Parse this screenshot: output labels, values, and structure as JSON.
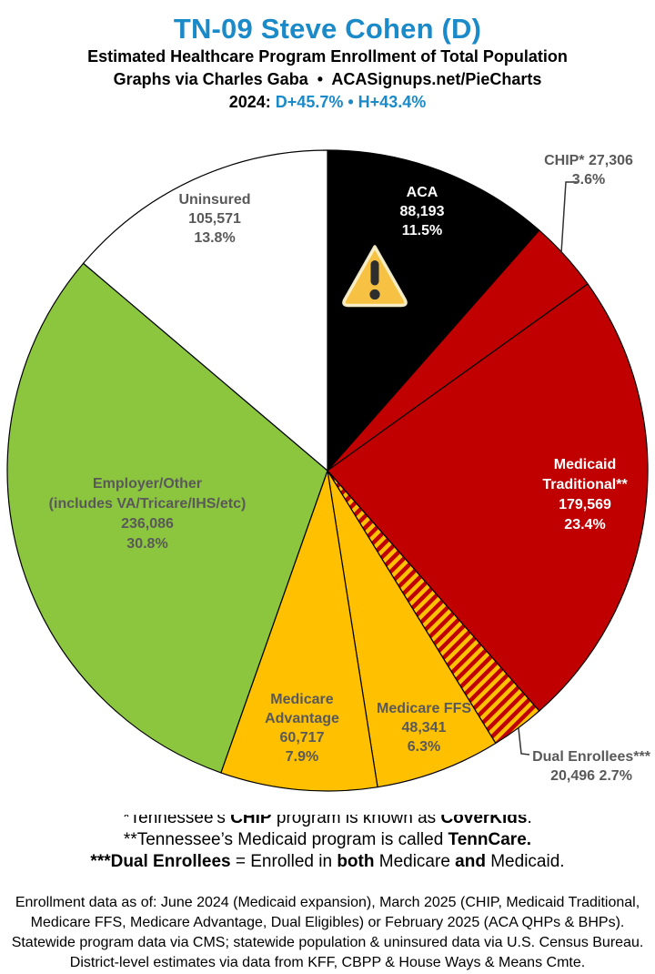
{
  "header": {
    "title": "TN-09 Steve Cohen (D)",
    "subtitle": "Estimated Healthcare Program Enrollment of Total Population",
    "credit": "Graphs via Charles Gaba  •  ACASignups.net/PieCharts",
    "year_segments": [
      {
        "text": "2024: ",
        "color": "#000000"
      },
      {
        "text": "D+45.7%",
        "color": "#1B8AC9"
      },
      {
        "text": " • ",
        "color": "#1B8AC9"
      },
      {
        "text": "H+43.4%",
        "color": "#1B8AC9"
      }
    ]
  },
  "colors": {
    "accent_blue": "#1B8AC9",
    "slice_black": "#000000",
    "slice_red": "#C00000",
    "slice_gold": "#FFC000",
    "slice_green": "#8CC63E",
    "slice_white": "#FFFFFF",
    "label_gray": "#595959",
    "hatch_red": "#C00000",
    "hatch_gold": "#FFC000",
    "warning_fill": "#F7C244",
    "warning_border": "#FCF2CF",
    "warning_glyph": "#2E2E2E"
  },
  "chart_data": {
    "type": "pie",
    "title": "Estimated Healthcare Program Enrollment of Total Population",
    "direction": "clockwise",
    "start_angle_deg_from_top": 0,
    "legend": "none",
    "annotations": [
      {
        "type": "warning-triangle-icon",
        "slice": "aca"
      }
    ],
    "slices": [
      {
        "name": "aca",
        "label": "ACA",
        "value": 88193,
        "value_text": "88,193",
        "pct": 11.5,
        "pct_text": "11.5%",
        "color": "#000000",
        "text_color": "#FFFFFF"
      },
      {
        "name": "chip",
        "label": "CHIP*",
        "label_line": "CHIP* 27,306",
        "value": 27306,
        "value_text": "27,306",
        "pct": 3.6,
        "pct_text": "3.6%",
        "color": "#C00000",
        "label_outside": true
      },
      {
        "name": "medicaid-traditional",
        "label": "Medicaid Traditional**",
        "label_lines": [
          "Medicaid",
          "Traditional**"
        ],
        "value": 179569,
        "value_text": "179,569",
        "pct": 23.4,
        "pct_text": "23.4%",
        "color": "#C00000",
        "text_color": "#FFFFFF"
      },
      {
        "name": "dual-enrollees",
        "label": "Dual Enrollees***",
        "value": 20496,
        "value_text": "20,496",
        "value_pct_text": "20,496 2.7%",
        "pct": 2.7,
        "pct_text": "2.7%",
        "color": "hatch",
        "label_outside": true
      },
      {
        "name": "medicare-ffs",
        "label": "Medicare FFS",
        "value": 48341,
        "value_text": "48,341",
        "pct": 6.3,
        "pct_text": "6.3%",
        "color": "#FFC000"
      },
      {
        "name": "medicare-advantage",
        "label": "Medicare Advantage",
        "label_lines": [
          "Medicare",
          "Advantage"
        ],
        "value": 60717,
        "value_text": "60,717",
        "pct": 7.9,
        "pct_text": "7.9%",
        "color": "#FFC000"
      },
      {
        "name": "employer-other",
        "label": "Employer/Other",
        "sublabel": "(includes VA/Tricare/IHS/etc)",
        "value": 236086,
        "value_text": "236,086",
        "pct": 30.8,
        "pct_text": "30.8%",
        "color": "#8CC63E"
      },
      {
        "name": "uninsured",
        "label": "Uninsured",
        "value": 105571,
        "value_text": "105,571",
        "pct": 13.8,
        "pct_text": "13.8%",
        "color": "#FFFFFF"
      }
    ]
  },
  "footnotes": [
    {
      "segments": [
        {
          "text": "*Tennessee’s "
        },
        {
          "text": "CHIP",
          "bold": true
        },
        {
          "text": " program is known as "
        },
        {
          "text": "CoverKids",
          "bold": true
        },
        {
          "text": "."
        }
      ]
    },
    {
      "segments": [
        {
          "text": "**Tennessee’s Medicaid program is called "
        },
        {
          "text": "TennCare.",
          "bold": true
        }
      ]
    },
    {
      "segments": [
        {
          "text": "***Dual Enrollees",
          "bold": true
        },
        {
          "text": " = Enrolled in "
        },
        {
          "text": "both",
          "bold": true
        },
        {
          "text": " Medicare "
        },
        {
          "text": "and",
          "bold": true
        },
        {
          "text": " Medicaid."
        }
      ]
    }
  ],
  "footer": {
    "lines": [
      "Enrollment data as of: June 2024 (Medicaid expansion), March 2025 (CHIP, Medicaid Traditional,",
      "Medicare FFS, Medicare Advantage, Dual Eligibles) or February 2025 (ACA QHPs & BHPs).",
      "Statewide program data via CMS; statewide population & uninsured data via U.S. Census Bureau.",
      "District-level estimates via data from KFF, CBPP & House Ways & Means Cmte."
    ]
  }
}
